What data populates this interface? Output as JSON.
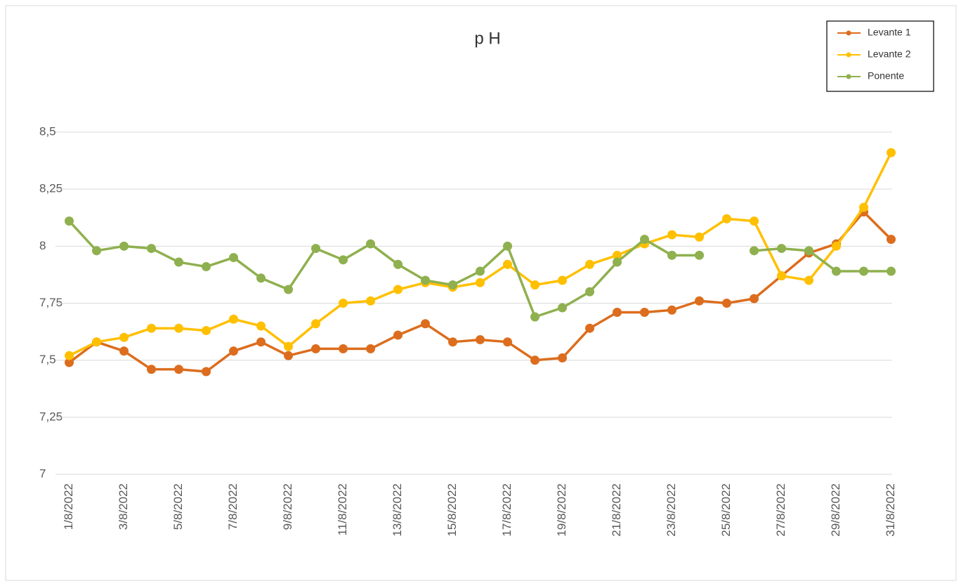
{
  "chart_data": {
    "type": "line",
    "title": "p H",
    "categories": [
      "1/8/2022",
      null,
      "3/8/2022",
      null,
      "5/8/2022",
      null,
      "7/8/2022",
      null,
      "9/8/2022",
      null,
      "11/8/2022",
      null,
      "13/8/2022",
      null,
      "15/8/2022",
      null,
      "17/8/2022",
      null,
      "19/8/2022",
      null,
      "21/8/2022",
      null,
      "23/8/2022",
      null,
      "25/8/2022",
      null,
      "27/8/2022",
      null,
      "29/8/2022",
      null,
      "31/8/2022"
    ],
    "series": [
      {
        "name": "Levante 1",
        "color": "#dc6d1e",
        "values": [
          7.49,
          7.58,
          7.54,
          7.46,
          7.46,
          7.45,
          7.54,
          7.58,
          7.52,
          7.55,
          7.55,
          7.55,
          7.61,
          7.66,
          7.58,
          7.59,
          7.58,
          7.5,
          7.51,
          7.64,
          7.71,
          7.71,
          7.72,
          7.76,
          7.75,
          7.77,
          7.87,
          7.97,
          8.01,
          8.15,
          8.03
        ]
      },
      {
        "name": "Levante 2",
        "color": "#ffc000",
        "values": [
          7.52,
          7.58,
          7.6,
          7.64,
          7.64,
          7.63,
          7.68,
          7.65,
          7.56,
          7.66,
          7.75,
          7.76,
          7.81,
          7.84,
          7.82,
          7.84,
          7.92,
          7.83,
          7.85,
          7.92,
          7.96,
          8.01,
          8.05,
          8.04,
          8.12,
          8.11,
          7.87,
          7.85,
          8.0,
          8.17,
          8.41
        ]
      },
      {
        "name": "Ponente",
        "color": "#8fb04f",
        "values": [
          8.11,
          7.98,
          8.0,
          7.99,
          7.93,
          7.91,
          7.95,
          7.86,
          7.81,
          7.99,
          7.94,
          8.01,
          7.92,
          7.85,
          7.83,
          7.89,
          8.0,
          7.69,
          7.73,
          7.8,
          7.93,
          8.03,
          7.96,
          7.96,
          null,
          7.98,
          7.99,
          7.98,
          7.89,
          7.89,
          7.89
        ]
      }
    ],
    "ylim": [
      7,
      8.5
    ],
    "yticks": [
      7,
      {
        "value": 7.25,
        "label": "7,25"
      },
      {
        "value": 7.5,
        "label": "7,5"
      },
      {
        "value": 7.75,
        "label": "7,75"
      },
      8,
      {
        "value": 8.25,
        "label": "8,25"
      },
      {
        "value": 8.5,
        "label": "8,5"
      }
    ],
    "grid": true,
    "legend": "top-right"
  }
}
